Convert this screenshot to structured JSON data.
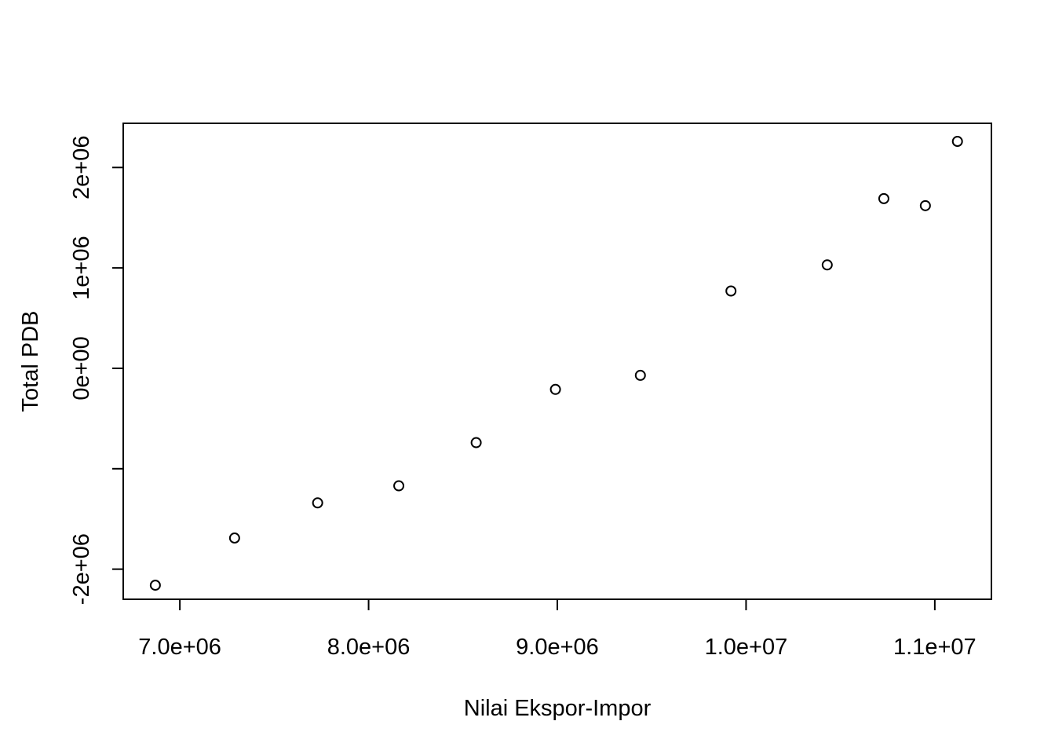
{
  "chart_data": {
    "type": "scatter",
    "title": "",
    "xlabel": "Nilai Ekspor-Impor",
    "ylabel": "Total PDB",
    "xlim": [
      6700000,
      11300000
    ],
    "ylim": [
      -2300000,
      2440000
    ],
    "x_ticks": [
      {
        "value": 7000000,
        "label": "7.0e+06"
      },
      {
        "value": 8000000,
        "label": "8.0e+06"
      },
      {
        "value": 9000000,
        "label": "9.0e+06"
      },
      {
        "value": 10000000,
        "label": "1.0e+07"
      },
      {
        "value": 11000000,
        "label": "1.1e+07"
      }
    ],
    "y_ticks": [
      {
        "value": -2000000,
        "label": "-2e+06"
      },
      {
        "value": -1000000,
        "label": ""
      },
      {
        "value": 0,
        "label": "0e+00"
      },
      {
        "value": 1000000,
        "label": "1e+06"
      },
      {
        "value": 2000000,
        "label": "2e+06"
      }
    ],
    "marker": "open-circle",
    "grid": false,
    "points": [
      {
        "x": 6870000,
        "y": -2160000
      },
      {
        "x": 7290000,
        "y": -1690000
      },
      {
        "x": 7730000,
        "y": -1340000
      },
      {
        "x": 8160000,
        "y": -1170000
      },
      {
        "x": 8570000,
        "y": -740000
      },
      {
        "x": 8990000,
        "y": -210000
      },
      {
        "x": 9440000,
        "y": -70000
      },
      {
        "x": 9920000,
        "y": 770000
      },
      {
        "x": 10430000,
        "y": 1030000
      },
      {
        "x": 10730000,
        "y": 1690000
      },
      {
        "x": 10950000,
        "y": 1620000
      },
      {
        "x": 11120000,
        "y": 2260000
      }
    ]
  }
}
